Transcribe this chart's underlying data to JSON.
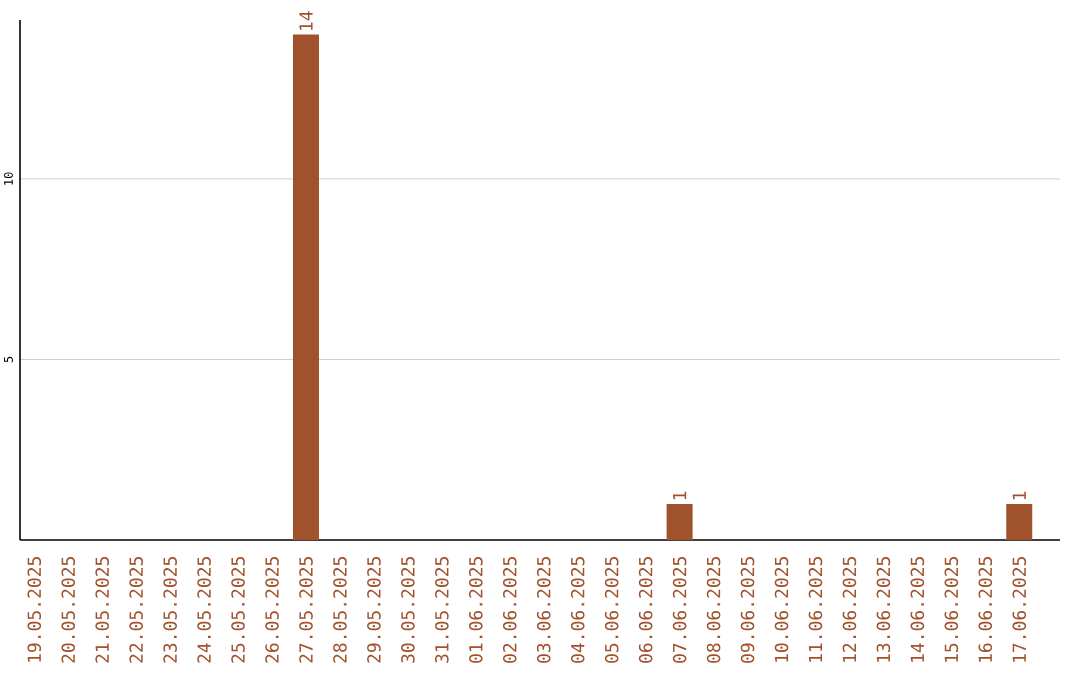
{
  "chart_data": {
    "type": "bar",
    "categories": [
      "19.05.2025",
      "20.05.2025",
      "21.05.2025",
      "22.05.2025",
      "23.05.2025",
      "24.05.2025",
      "25.05.2025",
      "26.05.2025",
      "27.05.2025",
      "28.05.2025",
      "29.05.2025",
      "30.05.2025",
      "31.05.2025",
      "01.06.2025",
      "02.06.2025",
      "03.06.2025",
      "04.06.2025",
      "05.06.2025",
      "06.06.2025",
      "07.06.2025",
      "08.06.2025",
      "09.06.2025",
      "10.06.2025",
      "11.06.2025",
      "12.06.2025",
      "13.06.2025",
      "14.06.2025",
      "15.06.2025",
      "16.06.2025",
      "17.06.2025"
    ],
    "values": [
      0,
      0,
      0,
      0,
      0,
      0,
      0,
      0,
      14,
      0,
      0,
      0,
      0,
      0,
      0,
      0,
      0,
      0,
      0,
      1,
      0,
      0,
      0,
      0,
      0,
      0,
      0,
      0,
      0,
      1
    ],
    "value_labels": [
      null,
      null,
      null,
      null,
      null,
      null,
      null,
      null,
      "14",
      null,
      null,
      null,
      null,
      null,
      null,
      null,
      null,
      null,
      null,
      "1",
      null,
      null,
      null,
      null,
      null,
      null,
      null,
      null,
      null,
      "1"
    ],
    "color": "#a0522d",
    "ylim": [
      0,
      14.4
    ],
    "yticks": [
      5,
      10
    ],
    "grid": "y"
  }
}
